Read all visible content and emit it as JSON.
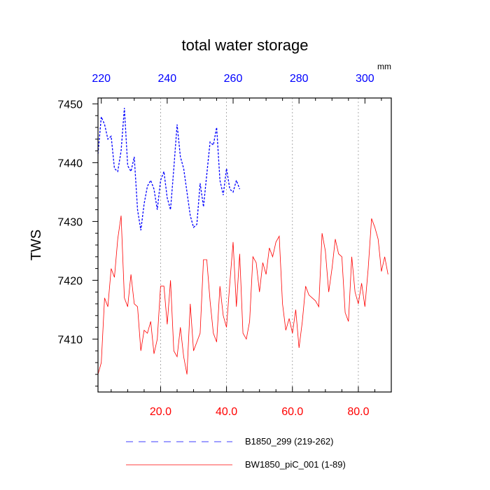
{
  "chart_data": {
    "type": "line",
    "title": "total water storage",
    "ylabel": "TWS",
    "ylim": [
      7401,
      7451
    ],
    "yticks": [
      7410,
      7420,
      7430,
      7440,
      7450
    ],
    "ytick_labels": [
      "7410",
      "7420",
      "7430",
      "7440",
      "7450"
    ],
    "bottom_axis": {
      "xlim": [
        1,
        90
      ],
      "ticks": [
        20,
        40,
        60,
        80
      ],
      "tick_labels": [
        "20.0",
        "40.0",
        "60.0",
        "80.0"
      ],
      "color": "#ff0000"
    },
    "top_axis": {
      "xlim": [
        219,
        308
      ],
      "ticks": [
        220,
        240,
        260,
        280,
        300
      ],
      "tick_labels": [
        "220",
        "240",
        "260",
        "280",
        "300"
      ],
      "units": "mm",
      "color": "#0000ff"
    },
    "grid": "vertical dotted at bottom-axis ticks",
    "series": [
      {
        "name": "B1850_299 (219-262)",
        "axis": "top",
        "color": "#0000ff",
        "dash": "dashed",
        "x": [
          219,
          220,
          221,
          222,
          223,
          224,
          225,
          226,
          227,
          228,
          229,
          230,
          231,
          232,
          233,
          234,
          235,
          236,
          237,
          238,
          239,
          240,
          241,
          242,
          243,
          244,
          245,
          246,
          247,
          248,
          249,
          250,
          251,
          252,
          253,
          254,
          255,
          256,
          257,
          258,
          259,
          260,
          261,
          262
        ],
        "y": [
          7441.5,
          7447.8,
          7446.5,
          7444.0,
          7444.5,
          7439.0,
          7438.5,
          7442.0,
          7449.3,
          7439.5,
          7438.5,
          7441.0,
          7432.0,
          7428.5,
          7433.0,
          7436.0,
          7437.0,
          7435.5,
          7432.0,
          7437.0,
          7438.5,
          7434.0,
          7432.0,
          7439.0,
          7446.5,
          7441.0,
          7439.0,
          7435.0,
          7431.0,
          7429.0,
          7429.5,
          7436.5,
          7432.5,
          7438.0,
          7443.5,
          7443.0,
          7446.0,
          7437.0,
          7434.5,
          7439.0,
          7435.5,
          7435.0,
          7437.0,
          7435.5
        ]
      },
      {
        "name": "BW1850_piC_001 (1-89)",
        "axis": "bottom",
        "color": "#ff0000",
        "dash": "solid",
        "x": [
          1,
          2,
          3,
          4,
          5,
          6,
          7,
          8,
          9,
          10,
          11,
          12,
          13,
          14,
          15,
          16,
          17,
          18,
          19,
          20,
          21,
          22,
          23,
          24,
          25,
          26,
          27,
          28,
          29,
          30,
          31,
          32,
          33,
          34,
          35,
          36,
          37,
          38,
          39,
          40,
          41,
          42,
          43,
          44,
          45,
          46,
          47,
          48,
          49,
          50,
          51,
          52,
          53,
          54,
          55,
          56,
          57,
          58,
          59,
          60,
          61,
          62,
          63,
          64,
          65,
          66,
          67,
          68,
          69,
          70,
          71,
          72,
          73,
          74,
          75,
          76,
          77,
          78,
          79,
          80,
          81,
          82,
          83,
          84,
          85,
          86,
          87,
          88,
          89
        ],
        "y": [
          7404.0,
          7406.0,
          7417.0,
          7415.5,
          7422.0,
          7420.5,
          7427.0,
          7431.0,
          7417.0,
          7415.5,
          7421.0,
          7416.0,
          7415.5,
          7408.0,
          7411.5,
          7411.0,
          7413.0,
          7407.5,
          7410.0,
          7419.0,
          7419.0,
          7412.5,
          7420.0,
          7408.0,
          7407.0,
          7412.0,
          7407.0,
          7404.0,
          7416.0,
          7408.0,
          7409.5,
          7411.0,
          7423.5,
          7423.5,
          7416.5,
          7411.0,
          7409.5,
          7419.0,
          7414.0,
          7412.0,
          7419.5,
          7426.5,
          7415.5,
          7424.5,
          7411.0,
          7410.0,
          7413.0,
          7424.0,
          7423.0,
          7418.0,
          7423.0,
          7421.0,
          7425.5,
          7424.0,
          7426.5,
          7427.5,
          7416.0,
          7411.5,
          7413.5,
          7411.0,
          7415.0,
          7408.5,
          7413.0,
          7419.0,
          7417.5,
          7417.0,
          7416.5,
          7415.5,
          7428.0,
          7425.0,
          7418.0,
          7422.0,
          7427.0,
          7424.5,
          7424.0,
          7414.5,
          7413.0,
          7424.0,
          7418.0,
          7416.0,
          7419.5,
          7415.5,
          7422.0,
          7430.5,
          7429.0,
          7427.0,
          7421.5,
          7424.0,
          7421.0
        ]
      }
    ],
    "legend_location": "bottom-center"
  }
}
